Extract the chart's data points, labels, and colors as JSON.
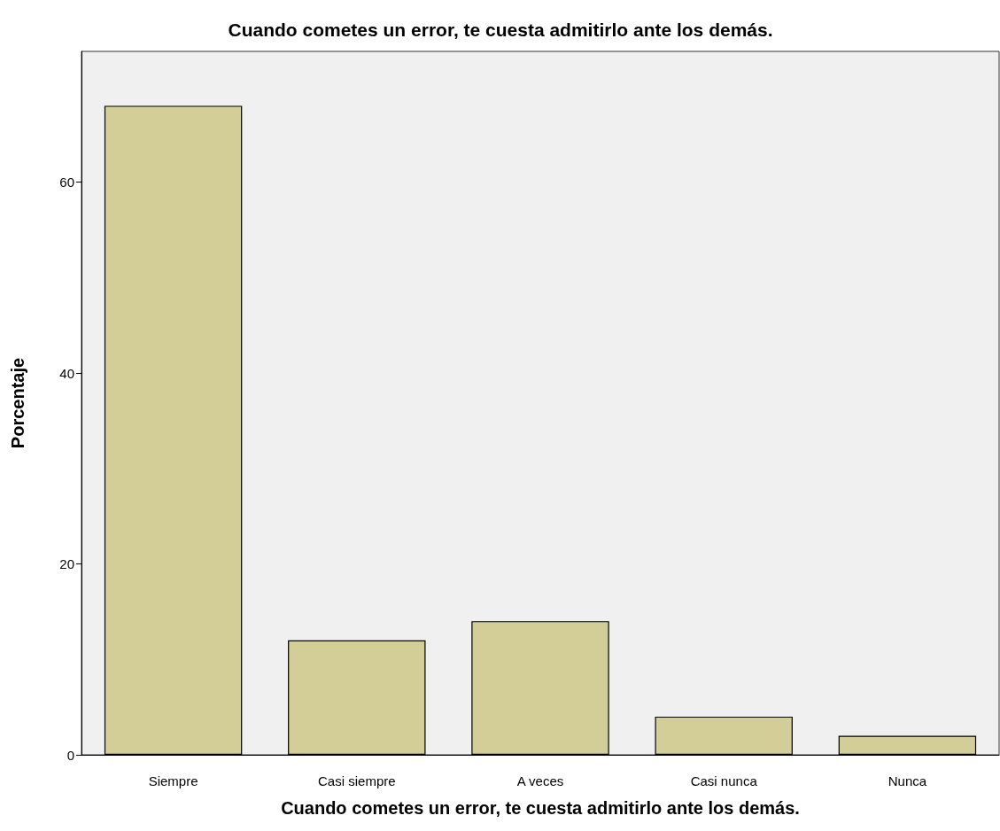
{
  "chart_data": {
    "type": "bar",
    "title": "Cuando cometes un error, te cuesta admitirlo ante los demás.",
    "xlabel": "Cuando cometes un error, te cuesta admitirlo ante los demás.",
    "ylabel": "Porcentaje",
    "categories": [
      "Siempre",
      "Casi siempre",
      "A veces",
      "Casi nunca",
      "Nunca"
    ],
    "values": [
      68,
      12,
      14,
      4,
      2
    ],
    "color": "#d3ce97",
    "ylim": [
      0,
      73.7
    ],
    "yticks": [
      0,
      20,
      40,
      60
    ]
  }
}
